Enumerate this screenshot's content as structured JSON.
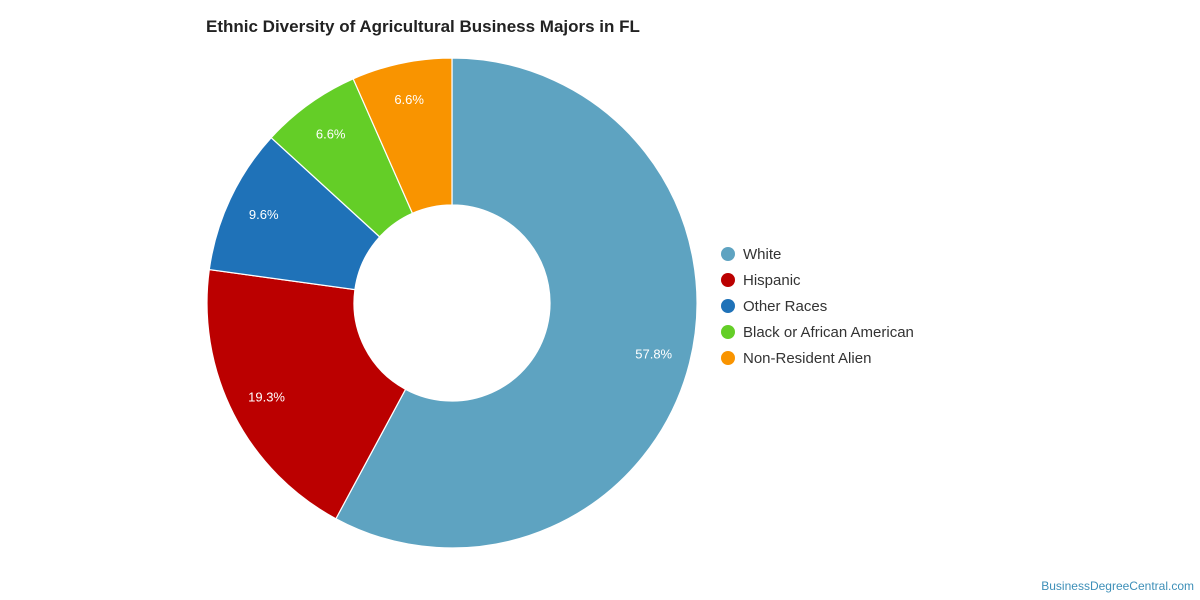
{
  "chart_data": {
    "type": "pie",
    "title": "Ethnic Diversity of Agricultural Business Majors in FL",
    "donut": true,
    "legend_position": "right",
    "slices": [
      {
        "name": "White",
        "value": 57.8,
        "label": "57.8%",
        "color": "#5ea3c1"
      },
      {
        "name": "Hispanic",
        "value": 19.3,
        "label": "19.3%",
        "color": "#bb0000"
      },
      {
        "name": "Other Races",
        "value": 9.6,
        "label": "9.6%",
        "color": "#1f72b8"
      },
      {
        "name": "Black or African American",
        "value": 6.6,
        "label": "6.6%",
        "color": "#64ce27"
      },
      {
        "name": "Non-Resident Alien",
        "value": 6.6,
        "label": "6.6%",
        "color": "#f99400"
      }
    ]
  },
  "footer": {
    "watermark": "BusinessDegreeCentral.com"
  }
}
